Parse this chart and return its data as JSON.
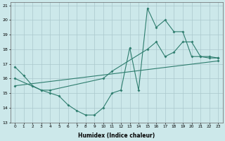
{
  "xlabel": "Humidex (Indice chaleur)",
  "xlim": [
    -0.5,
    23.5
  ],
  "ylim": [
    13,
    21.2
  ],
  "yticks": [
    13,
    14,
    15,
    16,
    17,
    18,
    19,
    20,
    21
  ],
  "line_color": "#2e7d6e",
  "bg_color": "#cce8ea",
  "grid_color": "#aac8cc",
  "line1_x": [
    0,
    1,
    2,
    3,
    4,
    5,
    6,
    7,
    8,
    9,
    10,
    11,
    12,
    13,
    14,
    15,
    16,
    17,
    18,
    19,
    20,
    21,
    22,
    23
  ],
  "line1_y": [
    16.8,
    16.2,
    15.5,
    15.2,
    15.0,
    14.8,
    14.2,
    13.8,
    13.5,
    13.5,
    14.0,
    15.0,
    15.2,
    18.1,
    15.2,
    20.8,
    19.5,
    20.0,
    19.2,
    19.2,
    17.5,
    17.5,
    17.4,
    17.4
  ],
  "line2_x": [
    0,
    3,
    4,
    10,
    11,
    15,
    16,
    17,
    18,
    19,
    20,
    21,
    22,
    23
  ],
  "line2_y": [
    16.0,
    15.2,
    15.2,
    16.0,
    16.5,
    18.0,
    18.5,
    17.5,
    17.8,
    18.5,
    18.5,
    17.5,
    17.5,
    17.4
  ],
  "line3_x": [
    0,
    23
  ],
  "line3_y": [
    15.5,
    17.2
  ]
}
